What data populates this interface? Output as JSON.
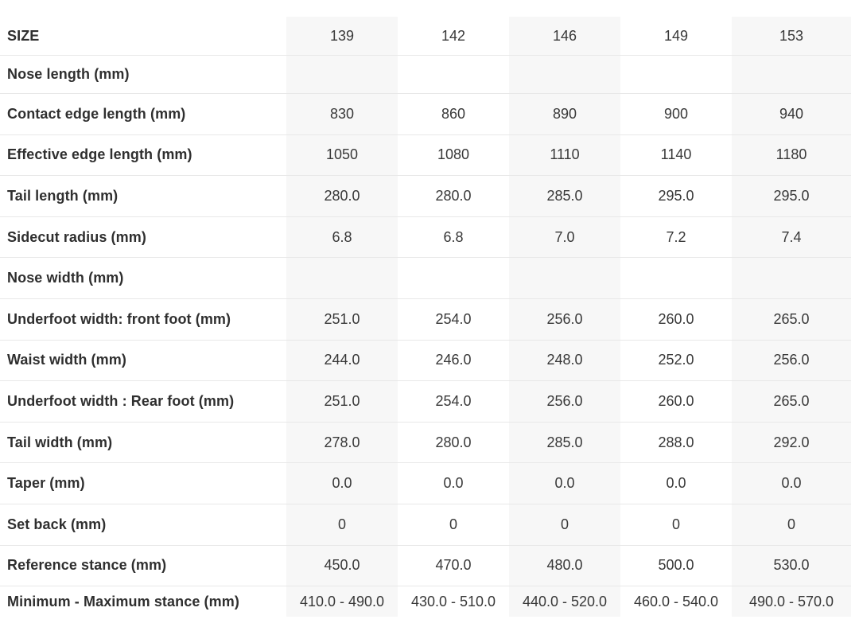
{
  "colors": {
    "column_stripe_bg": "#f7f7f7",
    "row_divider": "#e8e8e8",
    "label_text": "#2f2f2f",
    "value_text": "#383838",
    "page_bg": "#ffffff"
  },
  "chart_data": {
    "type": "table",
    "header": {
      "label": "SIZE",
      "sizes": [
        "139",
        "142",
        "146",
        "149",
        "153"
      ]
    },
    "rows": [
      {
        "label": "Nose length (mm)",
        "values": [
          "",
          "",
          "",
          "",
          ""
        ]
      },
      {
        "label": "Contact edge length (mm)",
        "values": [
          "830",
          "860",
          "890",
          "900",
          "940"
        ]
      },
      {
        "label": "Effective edge length (mm)",
        "values": [
          "1050",
          "1080",
          "1110",
          "1140",
          "1180"
        ]
      },
      {
        "label": "Tail length (mm)",
        "values": [
          "280.0",
          "280.0",
          "285.0",
          "295.0",
          "295.0"
        ]
      },
      {
        "label": "Sidecut radius (mm)",
        "values": [
          "6.8",
          "6.8",
          "7.0",
          "7.2",
          "7.4"
        ]
      },
      {
        "label": "Nose width (mm)",
        "values": [
          "",
          "",
          "",
          "",
          ""
        ]
      },
      {
        "label": "Underfoot width: front foot (mm)",
        "values": [
          "251.0",
          "254.0",
          "256.0",
          "260.0",
          "265.0"
        ]
      },
      {
        "label": "Waist width (mm)",
        "values": [
          "244.0",
          "246.0",
          "248.0",
          "252.0",
          "256.0"
        ]
      },
      {
        "label": "Underfoot width : Rear foot (mm)",
        "values": [
          "251.0",
          "254.0",
          "256.0",
          "260.0",
          "265.0"
        ]
      },
      {
        "label": "Tail width (mm)",
        "values": [
          "278.0",
          "280.0",
          "285.0",
          "288.0",
          "292.0"
        ]
      },
      {
        "label": "Taper (mm)",
        "values": [
          "0.0",
          "0.0",
          "0.0",
          "0.0",
          "0.0"
        ]
      },
      {
        "label": "Set back (mm)",
        "values": [
          "0",
          "0",
          "0",
          "0",
          "0"
        ]
      },
      {
        "label": "Reference stance (mm)",
        "values": [
          "450.0",
          "470.0",
          "480.0",
          "500.0",
          "530.0"
        ]
      },
      {
        "label": "Minimum - Maximum stance (mm)",
        "values": [
          "410.0 - 490.0",
          "430.0 - 510.0",
          "440.0 - 520.0",
          "460.0 - 540.0",
          "490.0 - 570.0"
        ]
      }
    ]
  }
}
